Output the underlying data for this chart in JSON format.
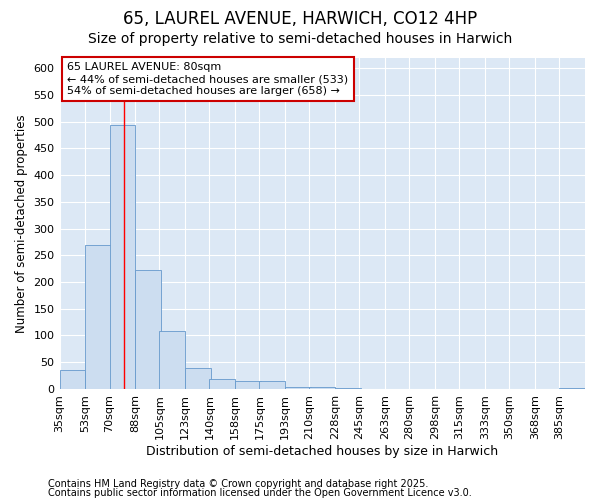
{
  "title1": "65, LAUREL AVENUE, HARWICH, CO12 4HP",
  "title2": "Size of property relative to semi-detached houses in Harwich",
  "xlabel": "Distribution of semi-detached houses by size in Harwich",
  "ylabel": "Number of semi-detached properties",
  "bins": [
    35,
    53,
    70,
    88,
    105,
    123,
    140,
    158,
    175,
    193,
    210,
    228,
    245,
    263,
    280,
    298,
    315,
    333,
    350,
    368,
    385
  ],
  "counts": [
    35,
    270,
    493,
    222,
    108,
    40,
    18,
    15,
    15,
    3,
    3,
    1,
    0,
    0,
    0,
    0,
    0,
    0,
    0,
    0,
    1
  ],
  "bar_color": "#ccddf0",
  "bar_edge_color": "#6699cc",
  "red_line_x": 80,
  "ylim": [
    0,
    620
  ],
  "yticks": [
    0,
    50,
    100,
    150,
    200,
    250,
    300,
    350,
    400,
    450,
    500,
    550,
    600
  ],
  "annotation_title": "65 LAUREL AVENUE: 80sqm",
  "annotation_line1": "← 44% of semi-detached houses are smaller (533)",
  "annotation_line2": "54% of semi-detached houses are larger (658) →",
  "annotation_box_color": "#ffffff",
  "annotation_box_edge": "#cc0000",
  "footer1": "Contains HM Land Registry data © Crown copyright and database right 2025.",
  "footer2": "Contains public sector information licensed under the Open Government Licence v3.0.",
  "bg_color": "#ffffff",
  "plot_bg_color": "#dce8f5",
  "grid_color": "#ffffff",
  "title1_fontsize": 12,
  "title2_fontsize": 10,
  "xlabel_fontsize": 9,
  "ylabel_fontsize": 8.5,
  "tick_fontsize": 8,
  "annotation_fontsize": 8,
  "footer_fontsize": 7
}
